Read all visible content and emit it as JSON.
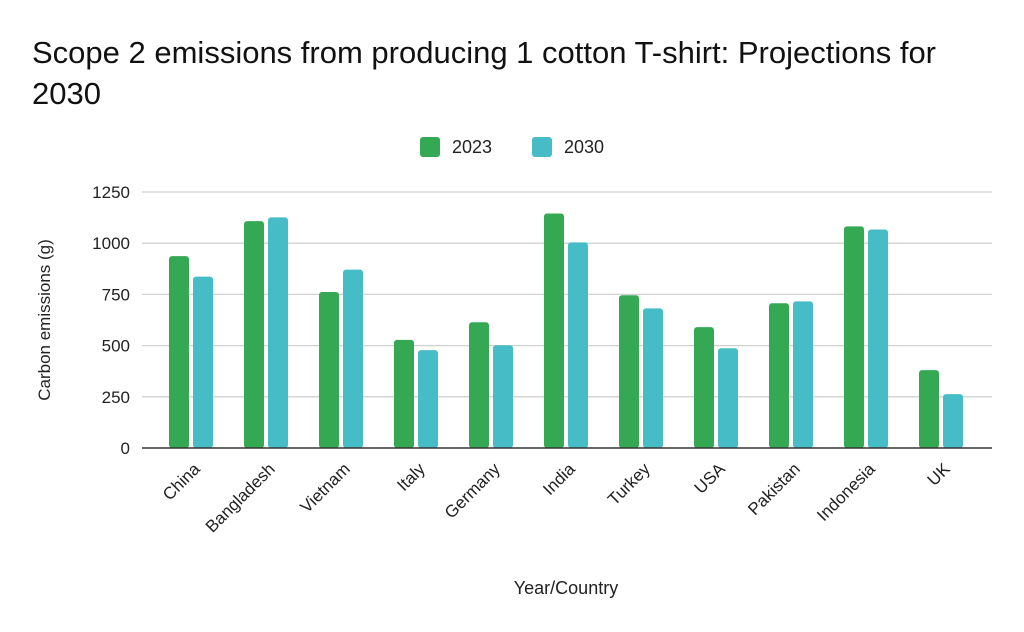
{
  "chart_data": {
    "type": "bar",
    "title": "Scope 2 emissions from producing 1 cotton T-shirt: Projections for 2030",
    "xlabel": "Year/Country",
    "ylabel": "Carbon emissions (g)",
    "ylim": [
      0,
      1250
    ],
    "yticks": [
      0,
      250,
      500,
      750,
      1000,
      1250
    ],
    "grid": true,
    "legend_position": "top",
    "categories": [
      "China",
      "Bangladesh",
      "Vietnam",
      "Italy",
      "Germany",
      "India",
      "Turkey",
      "USA",
      "Pakistan",
      "Indonesia",
      "UK"
    ],
    "series": [
      {
        "name": "2023",
        "color": "#34a853",
        "values": [
          937,
          1108,
          762,
          528,
          614,
          1145,
          746,
          590,
          707,
          1082,
          380
        ]
      },
      {
        "name": "2030",
        "color": "#46bdc6",
        "values": [
          837,
          1126,
          871,
          478,
          502,
          1004,
          682,
          487,
          716,
          1067,
          263
        ]
      }
    ]
  }
}
